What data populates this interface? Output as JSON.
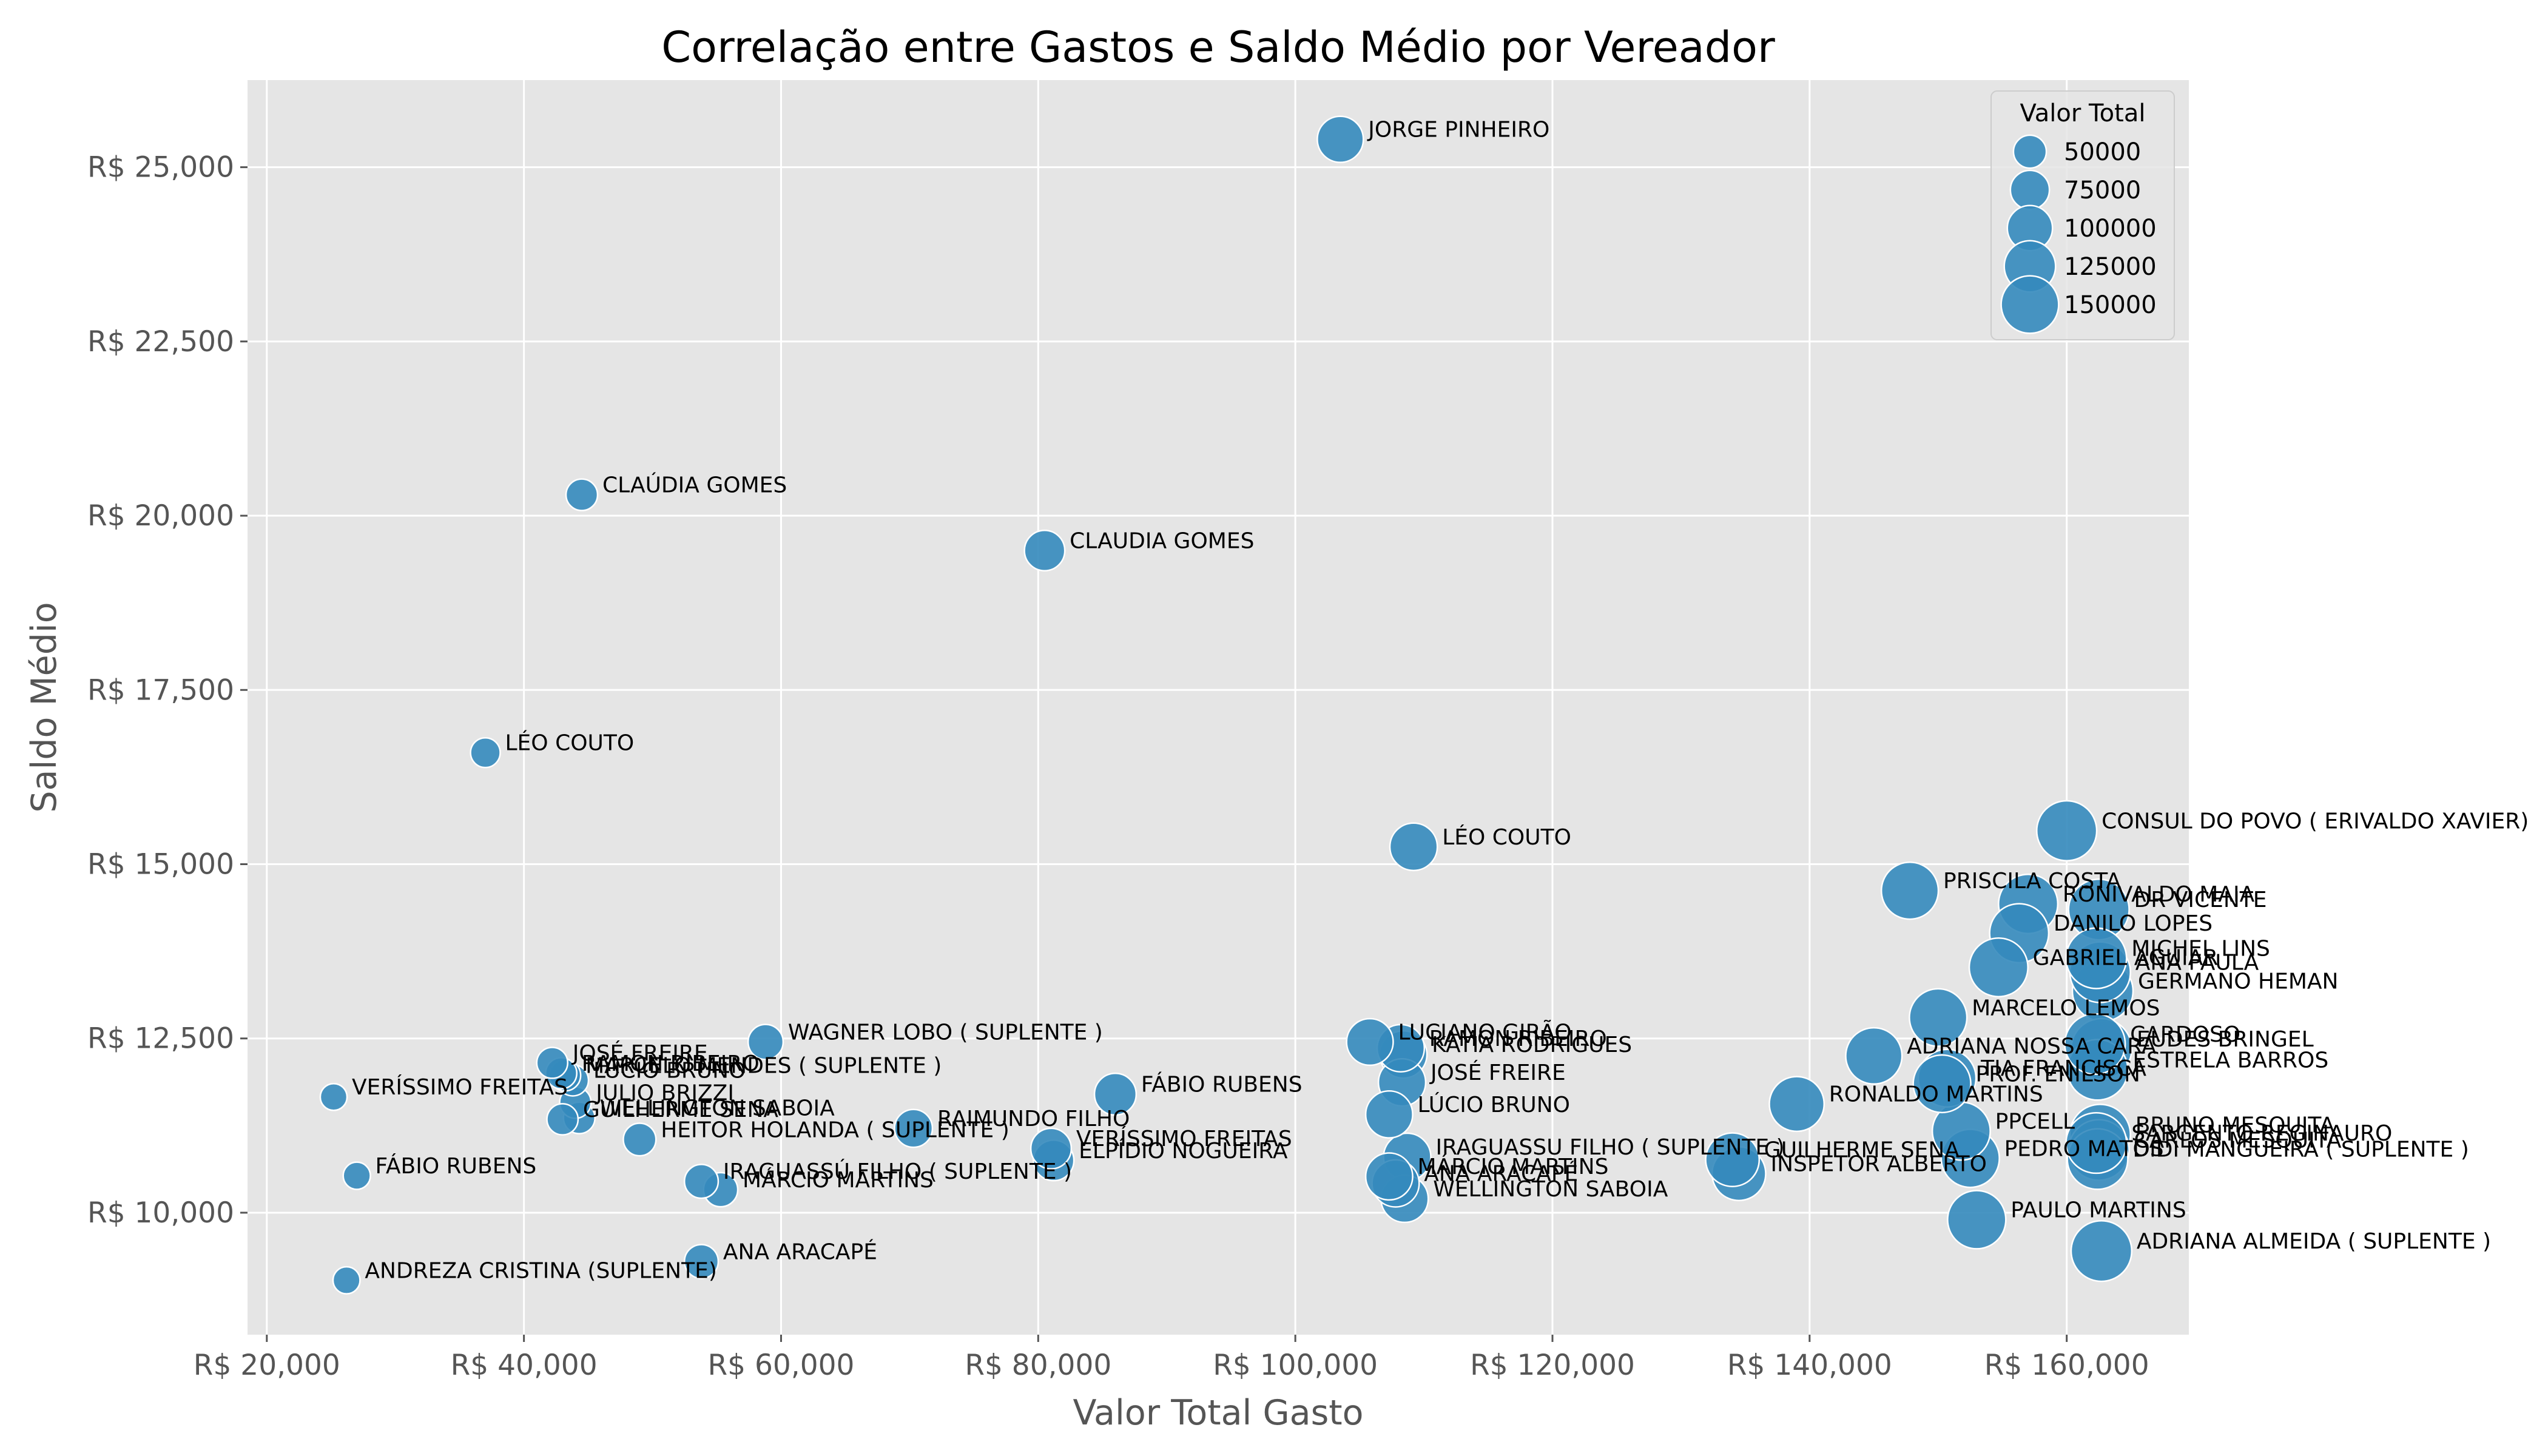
{
  "chart_data": {
    "type": "scatter",
    "title": "Correlação entre Gastos e Saldo Médio por Vereador",
    "xlabel": "Valor Total Gasto",
    "ylabel": "Saldo Médio",
    "xlim": [
      18500,
      169500
    ],
    "ylim": [
      8250,
      26250
    ],
    "x_ticks": [
      20000,
      40000,
      60000,
      80000,
      100000,
      120000,
      140000,
      160000
    ],
    "x_tick_labels": [
      "R$ 20,000",
      "R$ 40,000",
      "R$ 60,000",
      "R$ 80,000",
      "R$ 100,000",
      "R$ 120,000",
      "R$ 140,000",
      "R$ 160,000"
    ],
    "y_ticks": [
      10000,
      12500,
      15000,
      17500,
      20000,
      22500,
      25000
    ],
    "y_tick_labels": [
      "R$ 10,000",
      "R$ 12,500",
      "R$ 15,000",
      "R$ 17,500",
      "R$ 20,000",
      "R$ 22,500",
      "R$ 25,000"
    ],
    "grid": true,
    "marker_color": "#348ABD",
    "background_color": "#E5E5E5",
    "legend": {
      "title": "Valor Total",
      "placement": "top-right",
      "entries": [
        {
          "label": "50000",
          "value": 50000
        },
        {
          "label": "75000",
          "value": 75000
        },
        {
          "label": "100000",
          "value": 100000
        },
        {
          "label": "125000",
          "value": 125000
        },
        {
          "label": "150000",
          "value": 150000
        }
      ]
    },
    "points": [
      {
        "name": "JORGE PINHEIRO",
        "x": 103500,
        "y": 25400
      },
      {
        "name": "CLAÚDIA GOMES",
        "x": 44500,
        "y": 20300
      },
      {
        "name": "CLAUDIA GOMES",
        "x": 80500,
        "y": 19500
      },
      {
        "name": "LÉO COUTO",
        "x": 37000,
        "y": 16600
      },
      {
        "name": "LÉO COUTO",
        "x": 109200,
        "y": 15250
      },
      {
        "name": "CONSUL DO POVO ( ERIVALDO XAVIER)",
        "x": 160000,
        "y": 15480
      },
      {
        "name": "PRISCILA COSTA",
        "x": 147800,
        "y": 14620
      },
      {
        "name": "RONIVALDO MAIA",
        "x": 157000,
        "y": 14430
      },
      {
        "name": "DR VICENTE",
        "x": 162500,
        "y": 14350
      },
      {
        "name": "DANILO LOPES",
        "x": 156300,
        "y": 14010
      },
      {
        "name": "MICHEL LINS",
        "x": 162300,
        "y": 13650
      },
      {
        "name": "GABRIEL AGUIAR",
        "x": 154700,
        "y": 13520
      },
      {
        "name": "ANA PAULA",
        "x": 162600,
        "y": 13450
      },
      {
        "name": "GERMANO HEMAN",
        "x": 162800,
        "y": 13180
      },
      {
        "name": "MARCELO LEMOS",
        "x": 150000,
        "y": 12800
      },
      {
        "name": "ADRIANA NOSSA CARA",
        "x": 145000,
        "y": 12250
      },
      {
        "name": "CARDOSO",
        "x": 162200,
        "y": 12420
      },
      {
        "name": "EUDES BRINGEL",
        "x": 162700,
        "y": 12350
      },
      {
        "name": "ESTRELA BARROS",
        "x": 162400,
        "y": 12050
      },
      {
        "name": "TIA FRANCISCA",
        "x": 150700,
        "y": 11930
      },
      {
        "name": "PROF. ENILSON",
        "x": 150300,
        "y": 11850
      },
      {
        "name": "RONALDO MARTINS",
        "x": 139000,
        "y": 11560
      },
      {
        "name": "PPCELL",
        "x": 151800,
        "y": 11170
      },
      {
        "name": "BRUNO MESQUITA",
        "x": 162600,
        "y": 11120
      },
      {
        "name": "SARGENTO REGINAURO",
        "x": 162300,
        "y": 11000
      },
      {
        "name": "CARLOS MESQUITA",
        "x": 162500,
        "y": 10900
      },
      {
        "name": "PEDRO MATOS",
        "x": 152500,
        "y": 10780
      },
      {
        "name": "DIDI MANGUEIRA ( SUPLENTE )",
        "x": 162400,
        "y": 10770
      },
      {
        "name": "PAULO MARTINS",
        "x": 153000,
        "y": 9900
      },
      {
        "name": "ADRIANA ALMEIDA ( SUPLENTE )",
        "x": 162700,
        "y": 9450
      },
      {
        "name": "GUILHERME SENA",
        "x": 134000,
        "y": 10760
      },
      {
        "name": "INSPETOR ALBERTO",
        "x": 134500,
        "y": 10560
      },
      {
        "name": "LUCIANO GIRÃO",
        "x": 105800,
        "y": 12450
      },
      {
        "name": "KATIA RODRIGUES",
        "x": 108400,
        "y": 12270
      },
      {
        "name": "RAMON RIBEIRO",
        "x": 108200,
        "y": 12360
      },
      {
        "name": "JOSÉ FREIRE",
        "x": 108300,
        "y": 11870
      },
      {
        "name": "LÚCIO BRUNO",
        "x": 107300,
        "y": 11410
      },
      {
        "name": "IRAGUASSU FILHO ( SUPLENTE )",
        "x": 108700,
        "y": 10800
      },
      {
        "name": "MÁRCIO MARTINS",
        "x": 107300,
        "y": 10520
      },
      {
        "name": "ANA ARACAPÉ",
        "x": 107800,
        "y": 10420
      },
      {
        "name": "WELLINGTON SABOIA",
        "x": 108500,
        "y": 10200
      },
      {
        "name": "FÁBIO RUBENS",
        "x": 86000,
        "y": 11700
      },
      {
        "name": "VERÍSSIMO FREITAS",
        "x": 81000,
        "y": 10920
      },
      {
        "name": "ELPÍDIO NOGUEIRA",
        "x": 81200,
        "y": 10750
      },
      {
        "name": "RAIMUNDO FILHO",
        "x": 70300,
        "y": 11210
      },
      {
        "name": "WAGNER LOBO ( SUPLENTE )",
        "x": 58800,
        "y": 12450
      },
      {
        "name": "HEITOR HOLANDA ( SUPLENTE )",
        "x": 49000,
        "y": 11050
      },
      {
        "name": "IRAGUASSÚ FILHO ( SUPLENTE )",
        "x": 53800,
        "y": 10450
      },
      {
        "name": "MÁRCIO MARTINS",
        "x": 55300,
        "y": 10330
      },
      {
        "name": "ANA ARACAPÉ",
        "x": 53800,
        "y": 9300
      },
      {
        "name": "JOSÉ FREIRE",
        "x": 42200,
        "y": 12150
      },
      {
        "name": "MARCELO MENDES ( SUPLENTE )",
        "x": 43200,
        "y": 11970
      },
      {
        "name": "RAMON RIBEIRO",
        "x": 42900,
        "y": 12000
      },
      {
        "name": "LÚCIO BRUNO",
        "x": 43800,
        "y": 11900
      },
      {
        "name": "JULIO BRIZZI",
        "x": 44000,
        "y": 11580
      },
      {
        "name": "WELLINGTON SABOIA",
        "x": 44300,
        "y": 11360
      },
      {
        "name": "GUILHERME SENA",
        "x": 43000,
        "y": 11340
      },
      {
        "name": "VERÍSSIMO FREITAS",
        "x": 25200,
        "y": 11660
      },
      {
        "name": "FÁBIO RUBENS",
        "x": 27000,
        "y": 10530
      },
      {
        "name": "ANDREZA CRISTINA (SUPLENTE)",
        "x": 26200,
        "y": 9030
      }
    ]
  }
}
